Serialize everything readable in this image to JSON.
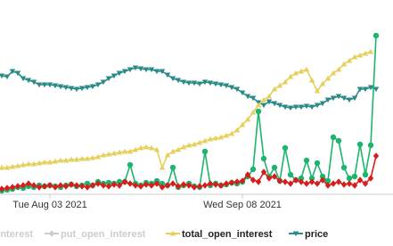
{
  "chart_data": {
    "type": "line",
    "categories": [
      null,
      null,
      null,
      null,
      null,
      null,
      null,
      null,
      null,
      "Tue Aug 03 2021",
      null,
      null,
      null,
      null,
      null,
      null,
      null,
      null,
      null,
      null,
      null,
      null,
      null,
      null,
      null,
      null,
      null,
      null,
      null,
      null,
      null,
      null,
      null,
      null,
      null,
      null,
      null,
      null,
      null,
      null,
      null,
      null,
      null,
      null,
      null,
      "Wed Sep 08 2021",
      null,
      null,
      null,
      null,
      null,
      null,
      null,
      null,
      null,
      null,
      null,
      null,
      null,
      null,
      null,
      null,
      null,
      null,
      null,
      null,
      null,
      null,
      null,
      null,
      null
    ],
    "ylim": [
      0,
      200
    ],
    "series": [
      {
        "name": "call_open_interest",
        "color": "#1db56d",
        "marker": "circle",
        "legend_muted": true,
        "values": [
          4,
          5,
          6,
          8,
          7,
          9,
          8,
          10,
          9,
          10,
          9,
          8,
          10,
          11,
          9,
          10,
          12,
          10,
          14,
          12,
          13,
          12,
          14,
          14,
          33,
          12,
          10,
          13,
          12,
          15,
          12,
          10,
          30,
          8,
          10,
          12,
          9,
          8,
          48,
          10,
          12,
          10,
          11,
          13,
          12,
          14,
          20,
          28,
          93,
          40,
          20,
          30,
          15,
          52,
          22,
          16,
          18,
          38,
          18,
          35,
          20,
          15,
          64,
          60,
          30,
          18,
          20,
          56,
          22,
          55,
          178
        ]
      },
      {
        "name": "put_open_interest",
        "color": "#d81b1b",
        "marker": "diamond",
        "legend_muted": true,
        "values": [
          6,
          7,
          8,
          9,
          10,
          12,
          10,
          8,
          9,
          10,
          8,
          10,
          9,
          11,
          10,
          9,
          8,
          10,
          12,
          10,
          9,
          11,
          10,
          14,
          12,
          10,
          9,
          11,
          10,
          12,
          8,
          10,
          12,
          9,
          11,
          10,
          8,
          9,
          10,
          12,
          11,
          10,
          12,
          13,
          14,
          15,
          22,
          16,
          14,
          25,
          18,
          20,
          15,
          14,
          12,
          16,
          14,
          12,
          14,
          12,
          16,
          10,
          12,
          14,
          11,
          12,
          10,
          16,
          12,
          18,
          43
        ]
      },
      {
        "name": "total_open_interest",
        "color": "#e6cf5a",
        "marker": "triangle-up",
        "legend_muted": false,
        "values": [
          30,
          30,
          31,
          32,
          33,
          34,
          34,
          35,
          36,
          36,
          37,
          38,
          38,
          39,
          39,
          40,
          40,
          41,
          42,
          44,
          45,
          46,
          47,
          48,
          48,
          50,
          52,
          53,
          52,
          50,
          30,
          44,
          48,
          50,
          53,
          55,
          56,
          58,
          60,
          62,
          63,
          64,
          66,
          68,
          72,
          78,
          84,
          92,
          100,
          106,
          110,
          118,
          122,
          126,
          132,
          136,
          138,
          140,
          128,
          116,
          124,
          130,
          136,
          140,
          146,
          150,
          154,
          156,
          158,
          160,
          null
        ]
      },
      {
        "name": "price",
        "color": "#2a8a88",
        "marker": "triangle-down",
        "legend_muted": false,
        "values": [
          133,
          132,
          138,
          136,
          130,
          128,
          126,
          123,
          123,
          123,
          122,
          121,
          120,
          119,
          118,
          119,
          120,
          121,
          123,
          126,
          130,
          133,
          136,
          138,
          140,
          142,
          141,
          140,
          140,
          138,
          138,
          134,
          130,
          128,
          126,
          125,
          125,
          124,
          126,
          125,
          124,
          123,
          122,
          120,
          118,
          114,
          110,
          108,
          103,
          100,
          104,
          102,
          100,
          98,
          97,
          98,
          98,
          99,
          98,
          100,
          102,
          106,
          108,
          110,
          108,
          106,
          108,
          118,
          118,
          120,
          118
        ]
      }
    ]
  }
}
